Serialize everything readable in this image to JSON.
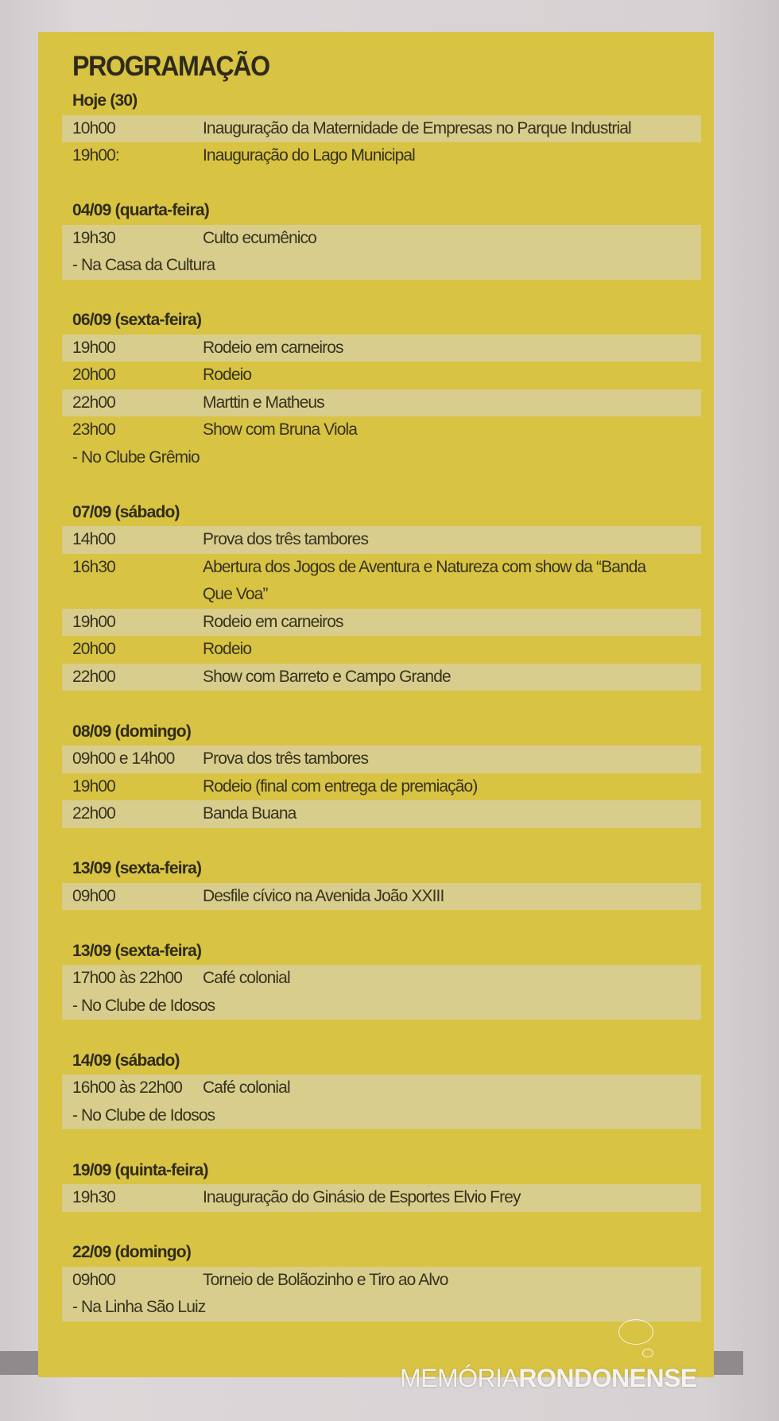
{
  "title": "PROGRAMAÇÃO",
  "colors": {
    "panel": "#d8c343",
    "stripe": "#d8cd8c",
    "text": "#37331f"
  },
  "groups": [
    {
      "heading": "Hoje (30)",
      "rows": [
        {
          "time": "10h00",
          "event": "Inauguração da Maternidade de Empresas no Parque Industrial",
          "shaded": true
        },
        {
          "time": "19h00:",
          "event": "Inauguração do Lago Municipal",
          "shaded": false
        }
      ]
    },
    {
      "heading": "04/09 (quarta-feira)",
      "rows": [
        {
          "time": "19h30",
          "event": "Culto ecumênico",
          "shaded": true
        }
      ],
      "note": "- Na Casa da Cultura",
      "note_shaded": true
    },
    {
      "heading": "06/09 (sexta-feira)",
      "rows": [
        {
          "time": "19h00",
          "event": "Rodeio em carneiros",
          "shaded": true
        },
        {
          "time": "20h00",
          "event": "Rodeio",
          "shaded": false
        },
        {
          "time": "22h00",
          "event": "Marttin e Matheus",
          "shaded": true
        },
        {
          "time": "23h00",
          "event": "Show com Bruna Viola",
          "shaded": false
        }
      ],
      "note": "- No Clube Grêmio",
      "note_shaded": false
    },
    {
      "heading": "07/09 (sábado)",
      "rows": [
        {
          "time": "14h00",
          "event": "Prova dos três tambores",
          "shaded": true
        },
        {
          "time": "16h30",
          "event": "Abertura dos Jogos de Aventura e Natureza com show da “Banda Que Voa”",
          "shaded": false
        },
        {
          "time": "19h00",
          "event": "Rodeio em carneiros",
          "shaded": true
        },
        {
          "time": "20h00",
          "event": "Rodeio",
          "shaded": false
        },
        {
          "time": "22h00",
          "event": "Show com Barreto e Campo Grande",
          "shaded": true
        }
      ]
    },
    {
      "heading": "08/09 (domingo)",
      "rows": [
        {
          "time": "09h00 e 14h00",
          "event": "Prova dos três tambores",
          "shaded": true
        },
        {
          "time": "19h00",
          "event": "Rodeio (final com entrega de premiação)",
          "shaded": false
        },
        {
          "time": "22h00",
          "event": "Banda Buana",
          "shaded": true
        }
      ]
    },
    {
      "heading": "13/09 (sexta-feira)",
      "rows": [
        {
          "time": "09h00",
          "event": "Desfile cívico na Avenida João XXIII",
          "shaded": true
        }
      ]
    },
    {
      "heading": "13/09 (sexta-feira)",
      "rows": [
        {
          "time": "17h00 às 22h00",
          "event": "Café colonial",
          "shaded": true
        }
      ],
      "note": "- No Clube de Idosos",
      "note_shaded": true
    },
    {
      "heading": "14/09 (sábado)",
      "rows": [
        {
          "time": "16h00 às 22h00",
          "event": "Café colonial",
          "shaded": true
        }
      ],
      "note": "- No Clube de Idosos",
      "note_shaded": true
    },
    {
      "heading": "19/09 (quinta-feira)",
      "rows": [
        {
          "time": "19h30",
          "event": "Inauguração do Ginásio de Esportes Elvio Frey",
          "shaded": true
        }
      ]
    },
    {
      "heading": "22/09 (domingo)",
      "rows": [
        {
          "time": "09h00",
          "event": "Torneio de Bolãozinho e Tiro ao Alvo",
          "shaded": true
        }
      ],
      "note": "- Na Linha São Luiz",
      "note_shaded": true
    }
  ],
  "watermark": {
    "part1": "MEMÓRIA",
    "part2": "RONDONENSE"
  }
}
